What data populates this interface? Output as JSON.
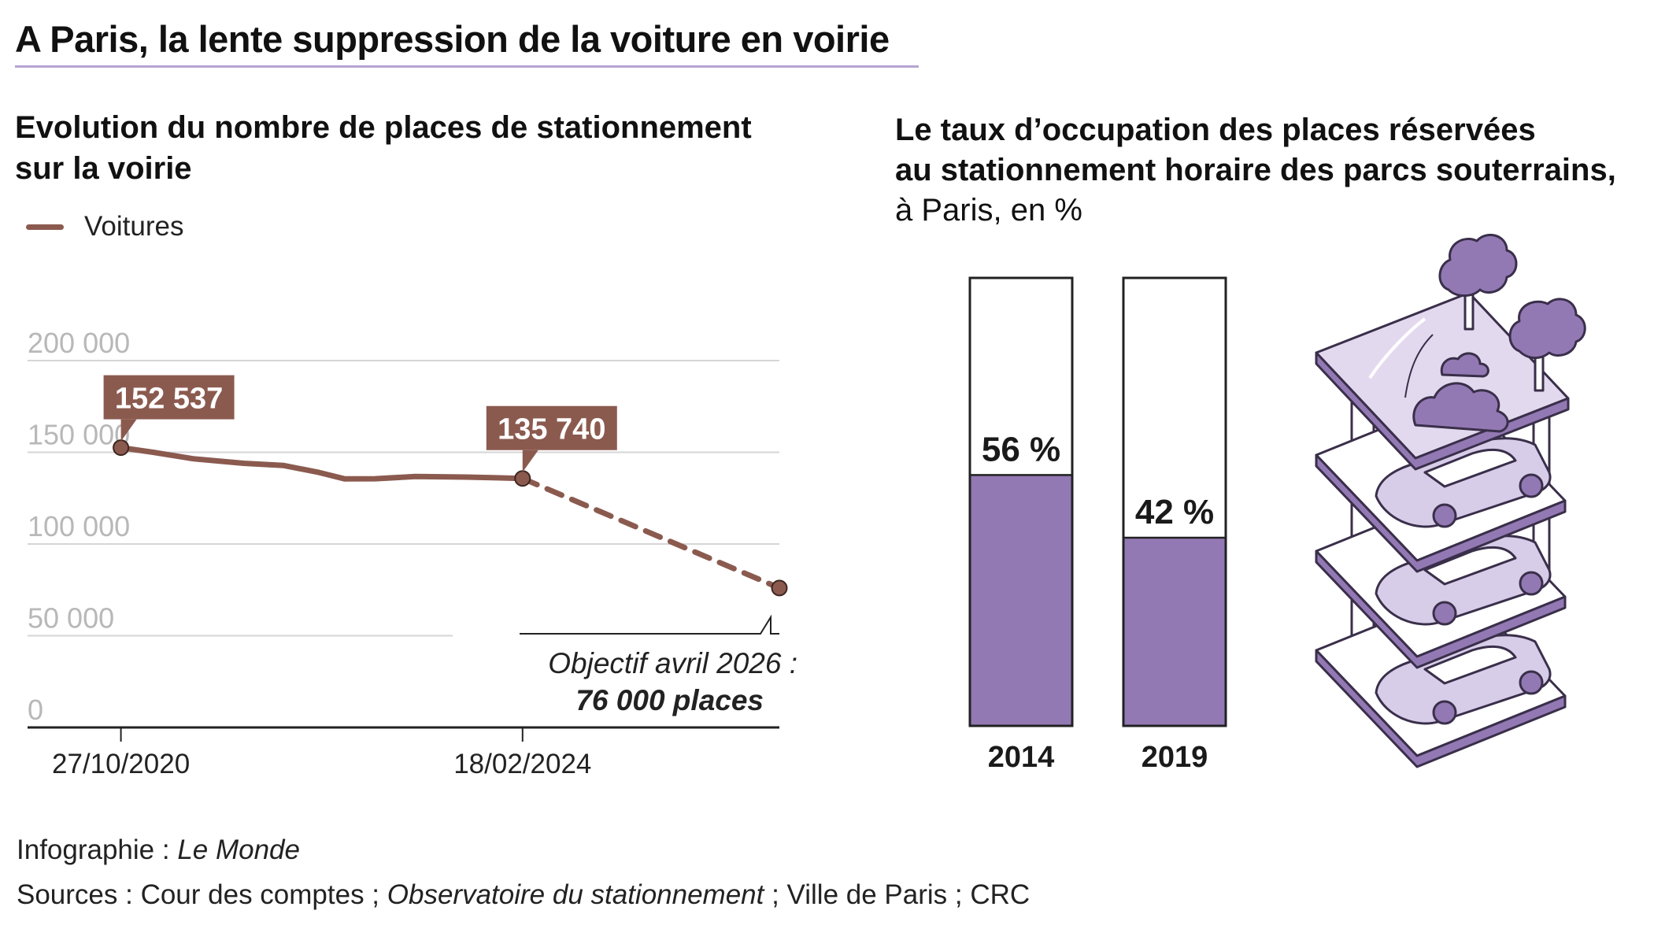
{
  "header": {
    "title": "A Paris, la lente suppression de la voiture en voirie"
  },
  "colors": {
    "line": "#8b5a4f",
    "callout": "#8b5a4f",
    "bar_fill": "#9379b4",
    "illustration_fill": "#9379b4",
    "illustration_light": "#d8cde8",
    "title_rule": "#b7a3d3",
    "grid": "#d6d6d6",
    "axis": "#222222"
  },
  "left_chart": {
    "subtitle": "Evolution du nombre de places de stationnement sur la voirie",
    "legend_label": "Voitures",
    "callouts": [
      "152 537",
      "135 740"
    ],
    "objective_line1": "Objectif avril 2026 :",
    "objective_line2": "76 000 places"
  },
  "right_chart": {
    "subtitle_bold_line1": "Le taux d’occupation des places réservées",
    "subtitle_bold_line2": "au stationnement horaire des parcs souterrains,",
    "subtitle_plain": "à Paris, en %",
    "illustration_icon": "parking-garage-illustration-icon"
  },
  "footer": {
    "credit_prefix": "Infographie : ",
    "credit_name": "Le Monde",
    "sources_prefix": "Sources : Cour des comptes ; ",
    "sources_italic": "Observatoire du stationnement",
    "sources_suffix": " ; Ville de Paris ; CRC"
  },
  "chart_data": [
    {
      "type": "line",
      "series": [
        {
          "name": "Voitures",
          "segments": [
            {
              "style": "solid",
              "points": [
                [
                  "2020-10-27",
                  152537
                ],
                [
                  "2021-02-01",
                  150000
                ],
                [
                  "2021-06-01",
                  146500
                ],
                [
                  "2021-11-01",
                  144000
                ],
                [
                  "2022-03-01",
                  142800
                ],
                [
                  "2022-06-15",
                  139000
                ],
                [
                  "2022-09-01",
                  135500
                ],
                [
                  "2022-12-01",
                  135600
                ],
                [
                  "2023-04-01",
                  136800
                ],
                [
                  "2023-09-01",
                  136500
                ],
                [
                  "2024-02-18",
                  135740
                ]
              ]
            },
            {
              "style": "dashed",
              "points": [
                [
                  "2024-02-18",
                  135740
                ],
                [
                  "2026-04-01",
                  76000
                ]
              ]
            }
          ]
        }
      ],
      "yticks": [
        0,
        50000,
        100000,
        150000,
        200000
      ],
      "ytick_labels": [
        "0",
        "50 000",
        "100 000",
        "150 000",
        "200 000"
      ],
      "xticks": [
        "2020-10-27",
        "2024-02-18"
      ],
      "xtick_labels": [
        "27/10/2020",
        "18/02/2024"
      ],
      "ylim": [
        0,
        200000
      ],
      "xlim": [
        "2020-01-20",
        "2026-04-01"
      ],
      "grid": true,
      "legend": "top-left"
    },
    {
      "type": "bar",
      "categories": [
        "2014",
        "2019"
      ],
      "values": [
        56,
        42
      ],
      "value_labels": [
        "56 %",
        "42 %"
      ],
      "ylim": [
        0,
        100
      ]
    }
  ]
}
